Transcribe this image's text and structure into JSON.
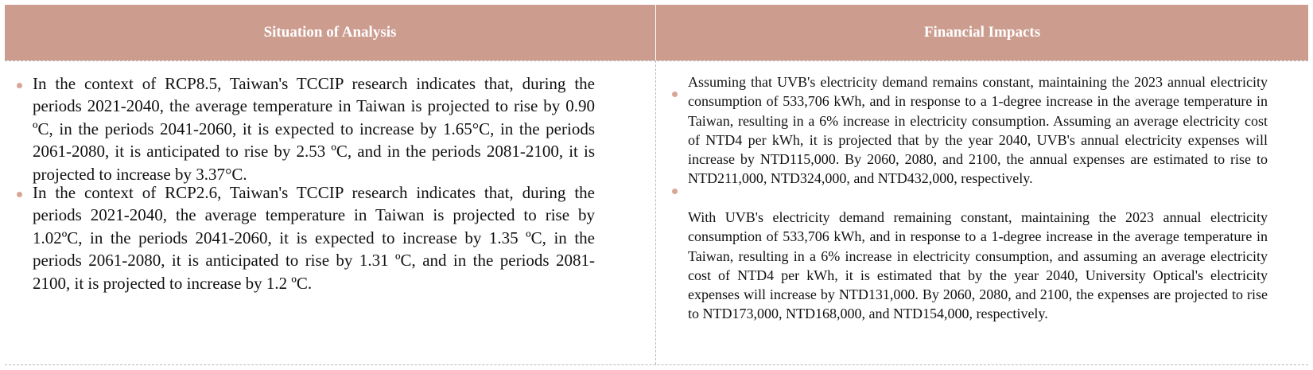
{
  "header": {
    "situation_label": "Situation of Analysis",
    "financial_label": "Financial Impacts"
  },
  "colors": {
    "header_bg": "#cc9c8f",
    "bullet": "#d8a697",
    "divider": "#b9b9b9"
  },
  "situation": {
    "items": [
      "In the context of RCP8.5, Taiwan's TCCIP research indicates that, during the periods 2021-2040, the average temperature in Taiwan is projected to rise by 0.90 ºC, in the periods 2041-2060, it is expected to increase by 1.65°C, in the periods 2061-2080, it is anticipated to rise by 2.53 ºC, and in the periods 2081-2100, it is projected to increase by 3.37°C.",
      "In the context of RCP2.6, Taiwan's TCCIP research indicates that, during the periods 2021-2040, the average temperature in Taiwan is projected to rise by 1.02ºC, in the periods 2041-2060, it is expected to increase by 1.35 ºC, in the periods 2061-2080, it is anticipated to rise by 1.31 ºC, and in the periods 2081-2100, it is projected to increase by 1.2 ºC."
    ]
  },
  "financial": {
    "items": [
      "Assuming that UVB's electricity demand remains constant, maintaining the 2023 annual electricity consumption of 533,706 kWh, and in response to a 1-degree increase in the average temperature in Taiwan, resulting in a 6% increase in electricity consumption. Assuming an average electricity cost of NTD4 per kWh, it is projected that by the year 2040, UVB's annual electricity expenses will increase by NTD115,000. By 2060, 2080, and 2100, the annual expenses are estimated to rise to NTD211,000, NTD324,000, and NTD432,000, respectively.",
      "With UVB's electricity demand remaining constant, maintaining the 2023 annual electricity consumption of 533,706 kWh, and in response to a 1-degree increase in the average temperature in Taiwan, resulting in a 6% increase in electricity consumption, and assuming an average electricity cost of NTD4 per kWh, it is estimated that by the year 2040, University Optical's electricity expenses will increase by NTD131,000. By 2060, 2080, and 2100, the expenses are projected to rise to NTD173,000, NTD168,000, and NTD154,000, respectively."
    ]
  }
}
